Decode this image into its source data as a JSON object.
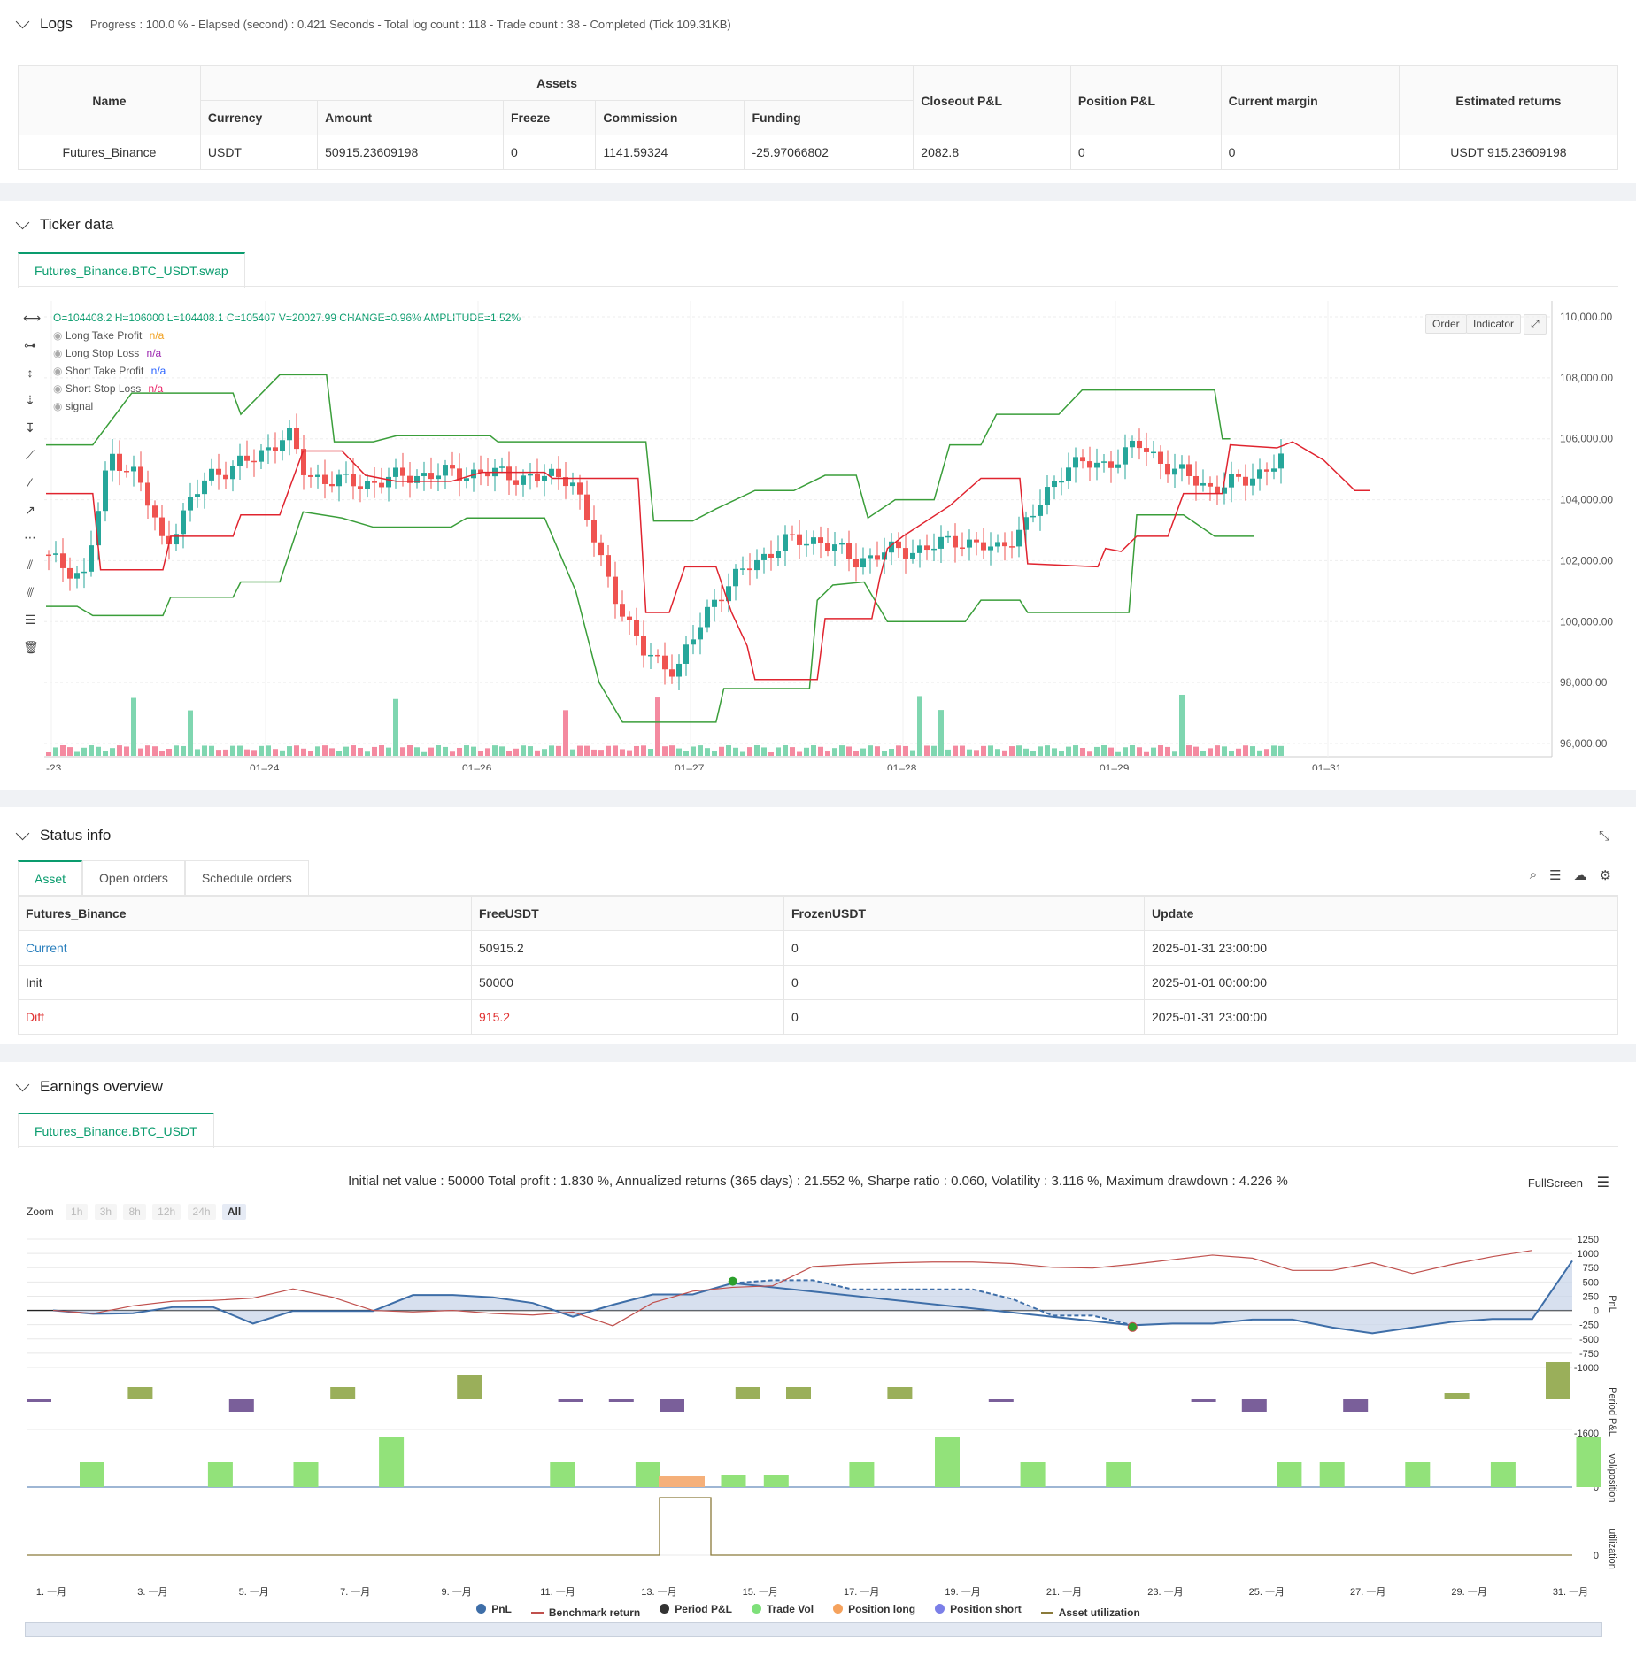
{
  "logs": {
    "title": "Logs",
    "summary": "Progress : 100.0 % - Elapsed (second) : 0.421 Seconds - Total log count : 118 - Trade count : 38 - Completed (Tick 109.31KB)"
  },
  "assets_table": {
    "headers": {
      "name": "Name",
      "assets": "Assets",
      "currency": "Currency",
      "amount": "Amount",
      "freeze": "Freeze",
      "commission": "Commission",
      "funding": "Funding",
      "closeout": "Closeout P&L",
      "position": "Position P&L",
      "margin": "Current margin",
      "estimated": "Estimated returns"
    },
    "row": {
      "name": "Futures_Binance",
      "currency": "USDT",
      "amount": "50915.23609198",
      "freeze": "0",
      "commission": "1141.59324",
      "funding": "-25.97066802",
      "closeout": "2082.8",
      "position": "0",
      "margin": "0",
      "estimated": "USDT 915.23609198"
    }
  },
  "ticker": {
    "title": "Ticker data",
    "tab": "Futures_Binance.BTC_USDT.swap",
    "ohlc": "O=104408.2 H=106000 L=104408.1 C=105407 V=20027.99 CHANGE=0.96% AMPLITUDE=1.52%",
    "legend": [
      {
        "label": "Long Take Profit",
        "value": "n/a",
        "color": "#f0a020"
      },
      {
        "label": "Long Stop Loss",
        "value": "n/a",
        "color": "#9c27b0"
      },
      {
        "label": "Short Take Profit",
        "value": "n/a",
        "color": "#2962ff"
      },
      {
        "label": "Short Stop Loss",
        "value": "n/a",
        "color": "#e91e63"
      },
      {
        "label": "signal",
        "value": "",
        "color": "#555"
      }
    ],
    "order_btn": "Order",
    "indicator_btn": "Indicator",
    "y_ticks": [
      "110,000.00",
      "108,000.00",
      "106,000.00",
      "104,000.00",
      "102,000.00",
      "100,000.00",
      "98,000.00",
      "96,000.00"
    ],
    "x_ticks": [
      "-23",
      "01–24",
      "01–26",
      "01–27",
      "01–28",
      "01–29",
      "01–31"
    ]
  },
  "status": {
    "title": "Status info",
    "tabs": [
      "Asset",
      "Open orders",
      "Schedule orders"
    ],
    "headers": [
      "Futures_Binance",
      "FreeUSDT",
      "FrozenUSDT",
      "Update"
    ],
    "rows": [
      [
        "Current",
        "50915.2",
        "0",
        "2025-01-31 23:00:00"
      ],
      [
        "Init",
        "50000",
        "0",
        "2025-01-01 00:00:00"
      ],
      [
        "Diff",
        "915.2",
        "0",
        "2025-01-31 23:00:00"
      ]
    ]
  },
  "earnings": {
    "title": "Earnings overview",
    "tab": "Futures_Binance.BTC_USDT",
    "summary": "Initial net value : 50000 Total profit : 1.830 %, Annualized returns (365 days) : 21.552 %, Sharpe ratio : 0.060, Volatility : 3.116 %, Maximum drawdown : 4.226 %",
    "fullscreen": "FullScreen",
    "zoom_label": "Zoom",
    "zoom_buttons": [
      "1h",
      "3h",
      "8h",
      "12h",
      "24h",
      "All"
    ],
    "pnl_ticks": [
      "1250",
      "1000",
      "750",
      "500",
      "250",
      "0",
      "-250",
      "-500",
      "-750",
      "-1000"
    ],
    "axis_labels": {
      "pnl": "PnL",
      "period": "Period P&L",
      "vol": "vol/position",
      "util": "utilization"
    },
    "period_tick": "-1600",
    "vol_tick": "0",
    "util_tick": "0",
    "x_ticks": [
      "1. 一月",
      "3. 一月",
      "5. 一月",
      "7. 一月",
      "9. 一月",
      "11. 一月",
      "13. 一月",
      "15. 一月",
      "17. 一月",
      "19. 一月",
      "21. 一月",
      "23. 一月",
      "25. 一月",
      "27. 一月",
      "29. 一月",
      "31. 一月"
    ],
    "legend": [
      {
        "label": "PnL",
        "color": "#3e6ea8",
        "kind": "dot"
      },
      {
        "label": "Benchmark return",
        "color": "#c0504d",
        "kind": "line"
      },
      {
        "label": "Period P&L",
        "color": "#333333",
        "kind": "dot"
      },
      {
        "label": "Trade Vol",
        "color": "#7ee07a",
        "kind": "dot"
      },
      {
        "label": "Position long",
        "color": "#f5a25d",
        "kind": "dot"
      },
      {
        "label": "Position short",
        "color": "#7b7fe8",
        "kind": "dot"
      },
      {
        "label": "Asset utilization",
        "color": "#8a7a3a",
        "kind": "line"
      }
    ],
    "pnl_series": [
      0,
      -60,
      -50,
      60,
      60,
      -230,
      -10,
      -10,
      -10,
      270,
      270,
      230,
      130,
      -110,
      100,
      280,
      280,
      480,
      530,
      530,
      370,
      370,
      370,
      370,
      200,
      -90,
      -90,
      -260,
      -230,
      -230,
      -160,
      -160,
      -300,
      -400,
      -300,
      -200,
      -150,
      -150,
      870
    ],
    "benchmark_series": [
      0,
      -40,
      60,
      120,
      130,
      160,
      280,
      170,
      0,
      -20,
      0,
      -40,
      -60,
      -20,
      -200,
      100,
      250,
      300,
      320,
      570,
      600,
      620,
      630,
      630,
      610,
      560,
      550,
      600,
      660,
      720,
      680,
      520,
      520,
      620,
      480,
      600,
      700,
      780
    ]
  }
}
